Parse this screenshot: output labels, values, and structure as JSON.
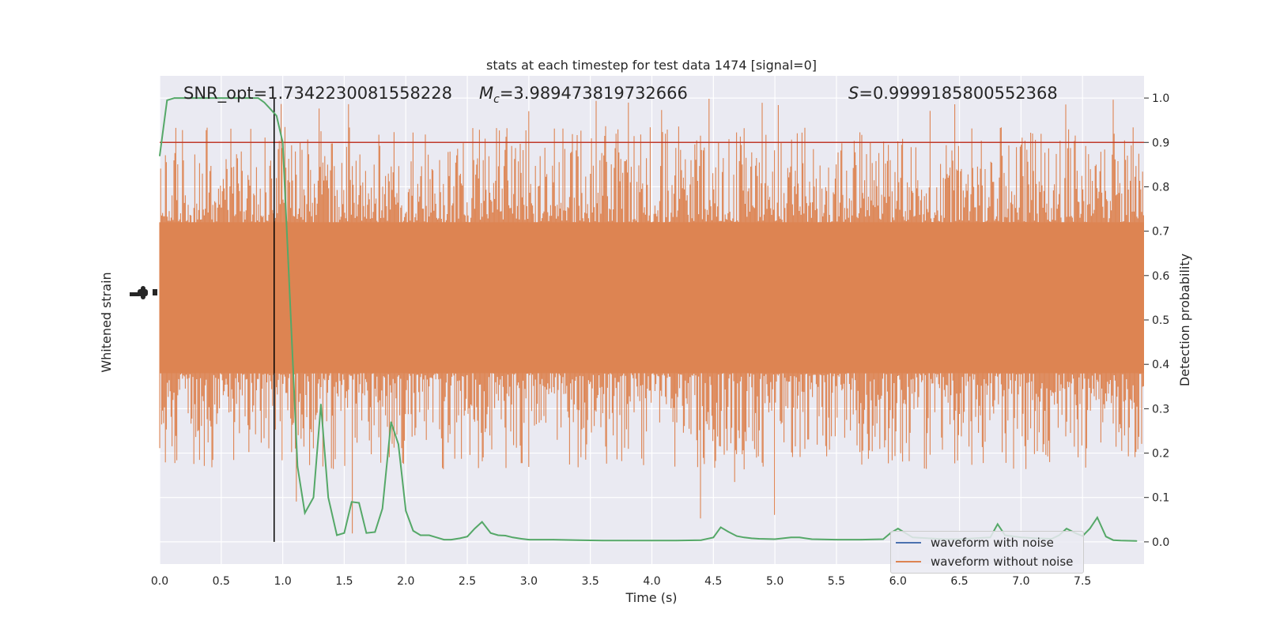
{
  "chart_data": {
    "type": "line",
    "title": "stats at each timestep for test data 1474 [signal=0]",
    "xlabel": "Time (s)",
    "ylabel_left": "Whitened strain",
    "ylabel_right": "Detection probability",
    "xlim": [
      0.0,
      8.0
    ],
    "ylim_right": [
      -0.05,
      1.05
    ],
    "x_ticks": [
      "0.0",
      "0.5",
      "1.0",
      "1.5",
      "2.0",
      "2.5",
      "3.0",
      "3.5",
      "4.0",
      "4.5",
      "5.0",
      "5.5",
      "6.0",
      "6.5",
      "7.0",
      "7.5"
    ],
    "x_tick_values": [
      0.0,
      0.5,
      1.0,
      1.5,
      2.0,
      2.5,
      3.0,
      3.5,
      4.0,
      4.5,
      5.0,
      5.5,
      6.0,
      6.5,
      7.0,
      7.5
    ],
    "y_right_ticks": [
      "0.0",
      "0.1",
      "0.2",
      "0.3",
      "0.4",
      "0.5",
      "0.6",
      "0.7",
      "0.8",
      "0.9",
      "1.0"
    ],
    "y_right_tick_values": [
      0.0,
      0.1,
      0.2,
      0.3,
      0.4,
      0.5,
      0.6,
      0.7,
      0.8,
      0.9,
      1.0
    ],
    "grid": true,
    "annotations": {
      "snr": "SNR_opt=1.7342230081558228",
      "mc_value": "=3.989473819732666",
      "s_value": "=0.9999185800552368"
    },
    "threshold": {
      "y": 0.9,
      "color": "#c0392b"
    },
    "marker_time": 0.93,
    "noise_envelope": {
      "center": 0.55,
      "core_low": 0.38,
      "core_high": 0.72,
      "min": 0.0,
      "max": 1.0,
      "color": "#dd8452"
    },
    "series": [
      {
        "name": "waveform with noise",
        "color": "#4c72b0"
      },
      {
        "name": "waveform without noise",
        "color": "#dd8452"
      }
    ],
    "detection_probability": {
      "color": "#55a868",
      "x": [
        0.0,
        0.06,
        0.12,
        0.2,
        0.3,
        0.4,
        0.5,
        0.6,
        0.7,
        0.8,
        0.85,
        0.9,
        0.95,
        1.0,
        1.05,
        1.12,
        1.18,
        1.25,
        1.31,
        1.37,
        1.44,
        1.5,
        1.56,
        1.62,
        1.68,
        1.75,
        1.81,
        1.88,
        1.94,
        2.0,
        2.06,
        2.12,
        2.19,
        2.25,
        2.31,
        2.37,
        2.44,
        2.5,
        2.56,
        2.62,
        2.69,
        2.75,
        2.81,
        2.87,
        2.94,
        3.0,
        3.2,
        3.4,
        3.6,
        3.8,
        4.0,
        4.2,
        4.4,
        4.5,
        4.56,
        4.62,
        4.69,
        4.75,
        4.81,
        4.87,
        5.0,
        5.13,
        5.2,
        5.3,
        5.5,
        5.7,
        5.88,
        5.94,
        6.0,
        6.06,
        6.12,
        6.25,
        6.37,
        6.5,
        6.62,
        6.75,
        6.81,
        6.87,
        7.0,
        7.12,
        7.25,
        7.31,
        7.37,
        7.44,
        7.5,
        7.56,
        7.62,
        7.69,
        7.75,
        7.81,
        7.94
      ],
      "y": [
        0.87,
        0.995,
        1.0,
        1.0,
        1.0,
        1.0,
        1.0,
        1.0,
        1.0,
        1.0,
        0.99,
        0.975,
        0.96,
        0.9,
        0.6,
        0.17,
        0.065,
        0.1,
        0.31,
        0.1,
        0.015,
        0.02,
        0.09,
        0.088,
        0.02,
        0.022,
        0.075,
        0.27,
        0.22,
        0.07,
        0.025,
        0.015,
        0.015,
        0.01,
        0.005,
        0.005,
        0.008,
        0.012,
        0.03,
        0.045,
        0.02,
        0.015,
        0.014,
        0.01,
        0.007,
        0.005,
        0.005,
        0.004,
        0.003,
        0.003,
        0.003,
        0.003,
        0.004,
        0.01,
        0.033,
        0.023,
        0.013,
        0.01,
        0.008,
        0.007,
        0.006,
        0.01,
        0.01,
        0.006,
        0.005,
        0.005,
        0.006,
        0.02,
        0.03,
        0.02,
        0.01,
        0.008,
        0.006,
        0.006,
        0.008,
        0.01,
        0.04,
        0.015,
        0.01,
        0.008,
        0.007,
        0.015,
        0.03,
        0.02,
        0.013,
        0.03,
        0.055,
        0.012,
        0.004,
        0.003,
        0.002
      ]
    }
  }
}
